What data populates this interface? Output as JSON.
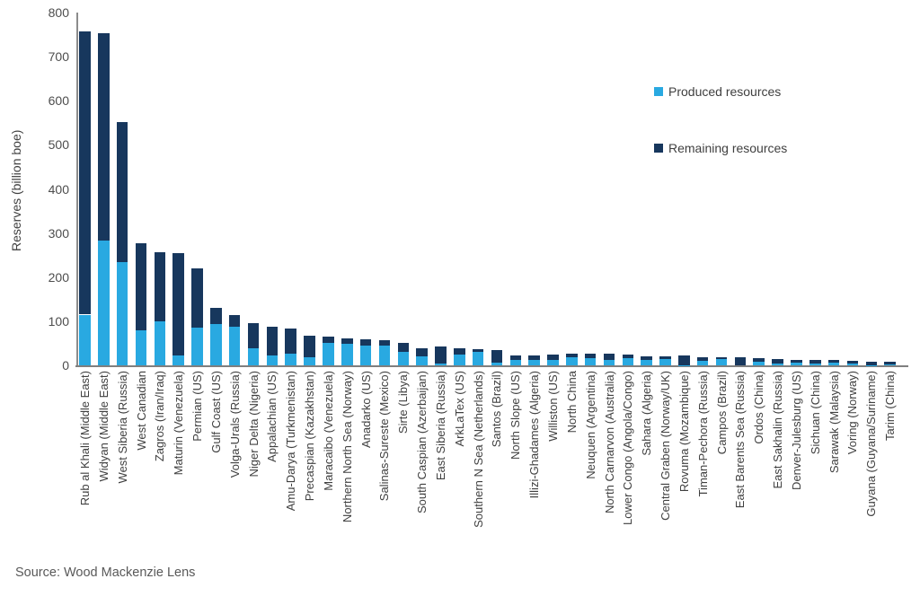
{
  "chart_data": {
    "type": "bar",
    "stacked": true,
    "title": "",
    "xlabel": "",
    "ylabel": "Reserves (billion boe)",
    "ylim": [
      0,
      800
    ],
    "yticks": [
      0,
      100,
      200,
      300,
      400,
      500,
      600,
      700,
      800
    ],
    "grid": false,
    "legend_position": "upper right",
    "categories": [
      "Rub al Khali (Middle East)",
      "Widyan (Middle East)",
      "West Siberia (Russia)",
      "West Canadian",
      "Zagros (Iran/Iraq)",
      "Maturin (Venezuela)",
      "Permian (US)",
      "Gulf Coast (US)",
      "Volga-Urals (Russia)",
      "Niger Delta (Nigeria)",
      "Appalachian (US)",
      "Amu-Darya (Turkmenistan)",
      "Precaspian (Kazakhstan)",
      "Maracaibo (Venezuela)",
      "Northern North Sea (Norway)",
      "Anadarko (US)",
      "Salinas-Sureste (Mexico)",
      "Sirte (Libya)",
      "South Caspian (Azerbaijan)",
      "East Siberia (Russia)",
      "ArkLaTex (US)",
      "Southern N Sea (Netherlands)",
      "Santos (Brazil)",
      "North Slope (US)",
      "Illizi-Ghadames (Algeria)",
      "Williston (US)",
      "North China",
      "Neuquen (Argentina)",
      "North Carnarvon (Australia)",
      "Lower Congo (Angola/Congo)",
      "Sahara (Algeria)",
      "Central Graben (Norway/UK)",
      "Rovuma (Mozambique)",
      "Timan-Pechora (Russia)",
      "Campos (Brazil)",
      "East Barents Sea (Russia)",
      "Ordos (China)",
      "East Sakhalin (Russia)",
      "Denver-Julesburg (US)",
      "Sichuan (China)",
      "Sarawak (Malaysia)",
      "Voring (Norway)",
      "Guyana (Guyana/Suriname)",
      "Tarim (China)"
    ],
    "series": [
      {
        "name": "Produced resources",
        "color": "#29A9E1",
        "values": [
          115,
          283,
          234,
          79,
          99,
          23,
          85,
          94,
          87,
          38,
          23,
          26,
          18,
          50,
          48,
          45,
          44,
          30,
          20,
          5,
          24,
          30,
          6,
          12,
          13,
          12,
          18,
          17,
          13,
          17,
          13,
          15,
          1,
          10,
          14,
          0,
          9,
          4,
          7,
          5,
          7,
          5,
          1,
          3
        ]
      },
      {
        "name": "Remaining resources",
        "color": "#17375D",
        "values": [
          642,
          471,
          317,
          198,
          157,
          231,
          135,
          37,
          28,
          57,
          64,
          58,
          49,
          15,
          13,
          14,
          12,
          21,
          19,
          37,
          15,
          7,
          29,
          11,
          10,
          13,
          8,
          10,
          14,
          8,
          7,
          5,
          21,
          8,
          5,
          18,
          7,
          10,
          5,
          7,
          5,
          6,
          8,
          5
        ]
      }
    ]
  },
  "chart": {
    "ylabel": "Reserves (billion boe)",
    "source": "Source: Wood Mackenzie Lens",
    "legend": [
      {
        "label": "Produced resources",
        "color": "#29A9E1"
      },
      {
        "label": "Remaining resources",
        "color": "#17375D"
      }
    ],
    "colors": {
      "axis_line": "#8c8c8c",
      "tick_text": "#4d4d4d",
      "label_text": "#404040",
      "background": "#ffffff"
    }
  }
}
